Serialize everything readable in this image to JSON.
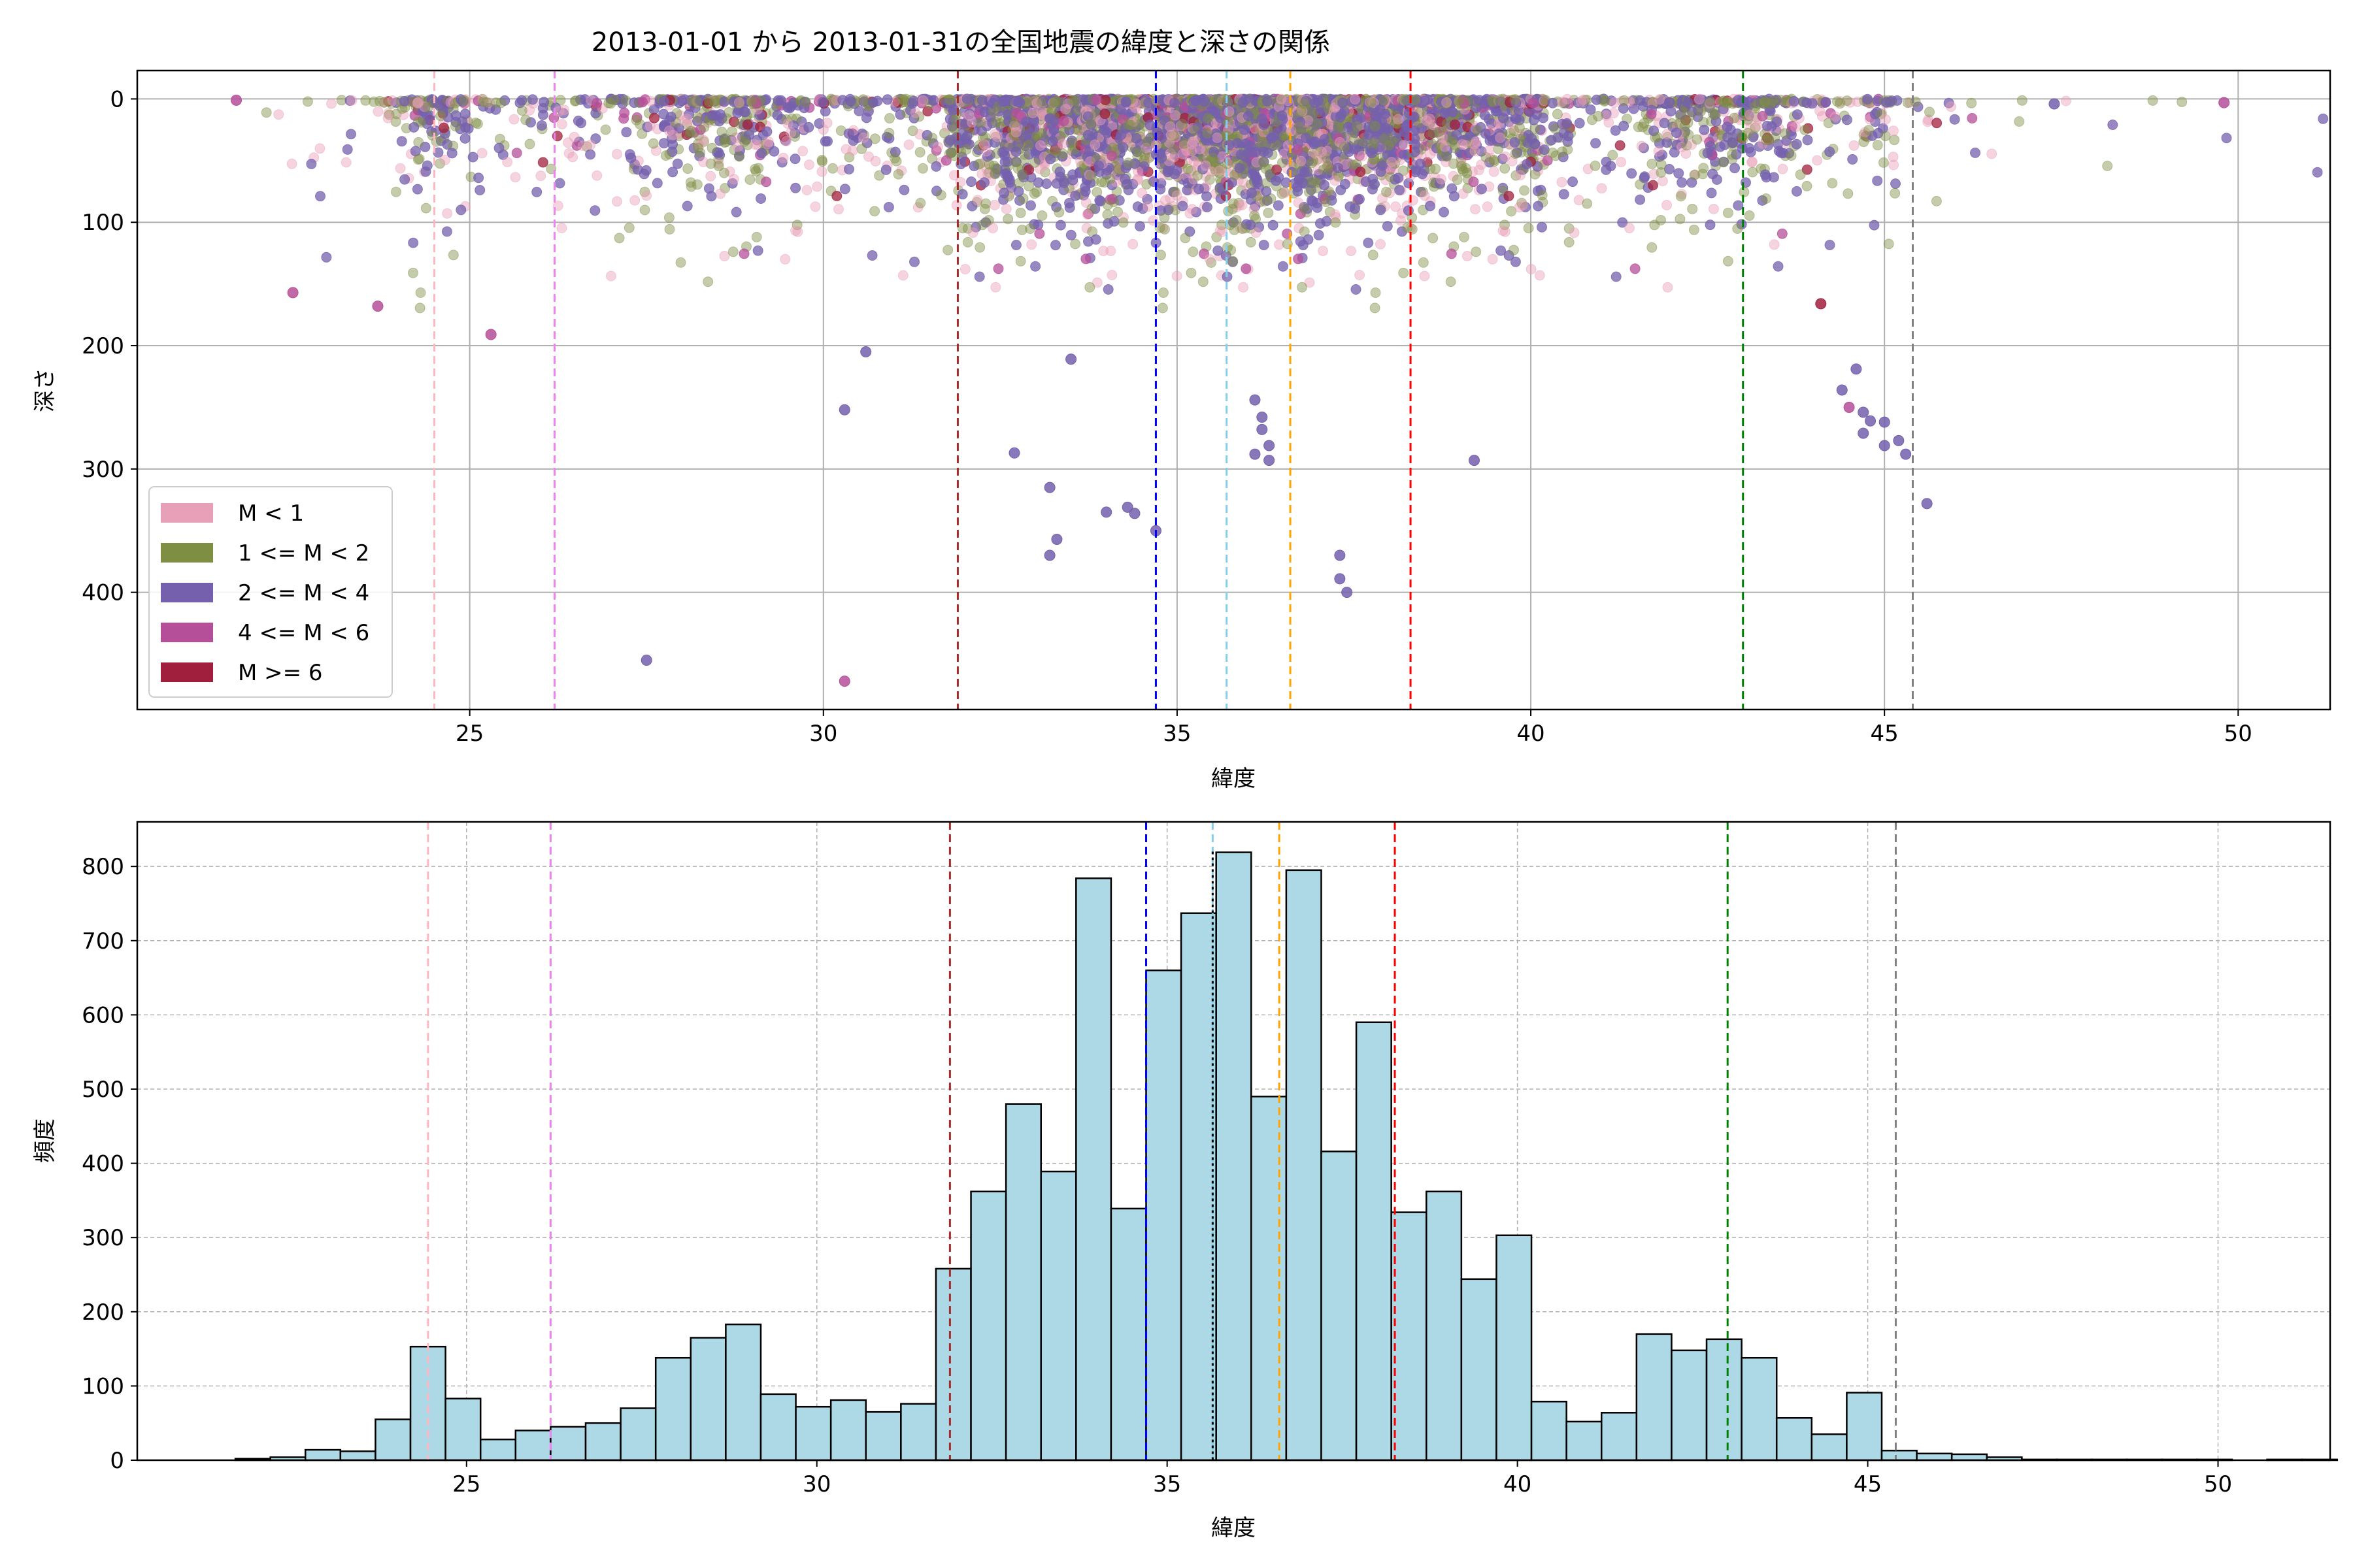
{
  "figure_title": "2013-01-01 から 2013-01-31の全国地震の緯度と深さの関係",
  "colors": {
    "M<1": "#e8a0b8",
    "1<=M<2": "#7e8f44",
    "2<=M<4": "#7460ad",
    "4<=M<6": "#b54f9a",
    "M>=6": "#a01f3c",
    "hist_fill": "#add8e6",
    "hist_edge": "#000000",
    "grid": "#b0b0b0"
  },
  "chart_data": [
    {
      "type": "scatter",
      "xlabel": "緯度",
      "ylabel": "深さ",
      "xlim": [
        20.3,
        51.3
      ],
      "ylim": [
        495,
        -23
      ],
      "y_inverted": true,
      "xticks": [
        25,
        30,
        35,
        40,
        45,
        50
      ],
      "yticks": [
        0,
        100,
        200,
        300,
        400
      ],
      "grid": true,
      "legend_position": "lower-left",
      "legend": [
        {
          "key": "M<1",
          "label": "M < 1"
        },
        {
          "key": "1<=M<2",
          "label": "1 <= M < 2"
        },
        {
          "key": "2<=M<4",
          "label": "2 <= M < 4"
        },
        {
          "key": "4<=M<6",
          "label": "4 <= M < 6"
        },
        {
          "key": "M>=6",
          "label": "M >= 6"
        }
      ],
      "vlines": [
        {
          "x": 24.5,
          "color": "#ffb6c1"
        },
        {
          "x": 26.2,
          "color": "#ee82ee"
        },
        {
          "x": 31.9,
          "color": "#a52a2a"
        },
        {
          "x": 34.7,
          "color": "#0000ff"
        },
        {
          "x": 35.7,
          "color": "#87ceeb"
        },
        {
          "x": 36.6,
          "color": "#ffa500"
        },
        {
          "x": 38.3,
          "color": "#ff0000"
        },
        {
          "x": 43.0,
          "color": "#008000"
        },
        {
          "x": 45.4,
          "color": "#808080"
        }
      ],
      "notable_points": [
        {
          "x": 21.7,
          "y": 1,
          "class": "4<=M<6"
        },
        {
          "x": 22.5,
          "y": 157,
          "class": "4<=M<6"
        },
        {
          "x": 23.7,
          "y": 168,
          "class": "4<=M<6"
        },
        {
          "x": 25.3,
          "y": 191,
          "class": "4<=M<6"
        },
        {
          "x": 27.5,
          "y": 455,
          "class": "2<=M<4"
        },
        {
          "x": 30.3,
          "y": 472,
          "class": "4<=M<6"
        },
        {
          "x": 30.3,
          "y": 252,
          "class": "2<=M<4"
        },
        {
          "x": 30.6,
          "y": 205,
          "class": "2<=M<4"
        },
        {
          "x": 32.7,
          "y": 287,
          "class": "2<=M<4"
        },
        {
          "x": 33.2,
          "y": 315,
          "class": "2<=M<4"
        },
        {
          "x": 33.2,
          "y": 370,
          "class": "2<=M<4"
        },
        {
          "x": 33.3,
          "y": 357,
          "class": "2<=M<4"
        },
        {
          "x": 33.5,
          "y": 211,
          "class": "2<=M<4"
        },
        {
          "x": 34.0,
          "y": 335,
          "class": "2<=M<4"
        },
        {
          "x": 34.3,
          "y": 331,
          "class": "2<=M<4"
        },
        {
          "x": 34.4,
          "y": 336,
          "class": "2<=M<4"
        },
        {
          "x": 34.7,
          "y": 350,
          "class": "2<=M<4"
        },
        {
          "x": 36.1,
          "y": 244,
          "class": "2<=M<4"
        },
        {
          "x": 36.2,
          "y": 258,
          "class": "2<=M<4"
        },
        {
          "x": 36.2,
          "y": 268,
          "class": "2<=M<4"
        },
        {
          "x": 36.3,
          "y": 281,
          "class": "2<=M<4"
        },
        {
          "x": 36.1,
          "y": 288,
          "class": "2<=M<4"
        },
        {
          "x": 36.3,
          "y": 293,
          "class": "2<=M<4"
        },
        {
          "x": 37.3,
          "y": 370,
          "class": "2<=M<4"
        },
        {
          "x": 37.3,
          "y": 389,
          "class": "2<=M<4"
        },
        {
          "x": 37.4,
          "y": 400,
          "class": "2<=M<4"
        },
        {
          "x": 39.2,
          "y": 293,
          "class": "2<=M<4"
        },
        {
          "x": 44.1,
          "y": 166,
          "class": "M>=6"
        },
        {
          "x": 44.4,
          "y": 236,
          "class": "2<=M<4"
        },
        {
          "x": 44.5,
          "y": 250,
          "class": "4<=M<6"
        },
        {
          "x": 44.6,
          "y": 219,
          "class": "2<=M<4"
        },
        {
          "x": 44.7,
          "y": 254,
          "class": "2<=M<4"
        },
        {
          "x": 44.7,
          "y": 271,
          "class": "2<=M<4"
        },
        {
          "x": 44.8,
          "y": 261,
          "class": "2<=M<4"
        },
        {
          "x": 45.0,
          "y": 262,
          "class": "2<=M<4"
        },
        {
          "x": 45.0,
          "y": 281,
          "class": "2<=M<4"
        },
        {
          "x": 45.2,
          "y": 277,
          "class": "2<=M<4"
        },
        {
          "x": 45.3,
          "y": 288,
          "class": "2<=M<4"
        },
        {
          "x": 45.6,
          "y": 328,
          "class": "2<=M<4"
        },
        {
          "x": 47.4,
          "y": 4,
          "class": "2<=M<4"
        },
        {
          "x": 49.8,
          "y": 3,
          "class": "4<=M<6"
        }
      ]
    },
    {
      "type": "bar",
      "xlabel": "緯度",
      "ylabel": "頻度",
      "xlim": [
        20.3,
        51.6
      ],
      "ylim": [
        0,
        860
      ],
      "xticks": [
        25,
        30,
        35,
        40,
        45,
        50
      ],
      "yticks": [
        0,
        100,
        200,
        300,
        400,
        500,
        600,
        700,
        800
      ],
      "grid": true,
      "grid_style": "dashed",
      "bin_start": 21.7,
      "bin_width": 0.5,
      "values": [
        2,
        4,
        14,
        12,
        55,
        153,
        83,
        28,
        40,
        45,
        50,
        70,
        138,
        165,
        183,
        89,
        72,
        81,
        65,
        76,
        258,
        362,
        480,
        389,
        784,
        339,
        660,
        737,
        819,
        490,
        795,
        416,
        590,
        334,
        362,
        244,
        303,
        79,
        52,
        64,
        170,
        148,
        163,
        138,
        57,
        35,
        91,
        13,
        9,
        8,
        4,
        1,
        1,
        1,
        1,
        1,
        1,
        0,
        1,
        1,
        0
      ],
      "vlines": [
        {
          "x": 24.45,
          "color": "#ffb6c1"
        },
        {
          "x": 26.2,
          "color": "#ee82ee"
        },
        {
          "x": 31.9,
          "color": "#a52a2a"
        },
        {
          "x": 34.7,
          "color": "#0000ff"
        },
        {
          "x": 35.65,
          "color": "#87ceeb"
        },
        {
          "x": 36.6,
          "color": "#ffa500"
        },
        {
          "x": 38.25,
          "color": "#ff0000"
        },
        {
          "x": 43.0,
          "color": "#008000"
        },
        {
          "x": 45.4,
          "color": "#808080"
        }
      ],
      "mean_line": {
        "x": 35.65,
        "color": "#000000"
      }
    }
  ]
}
